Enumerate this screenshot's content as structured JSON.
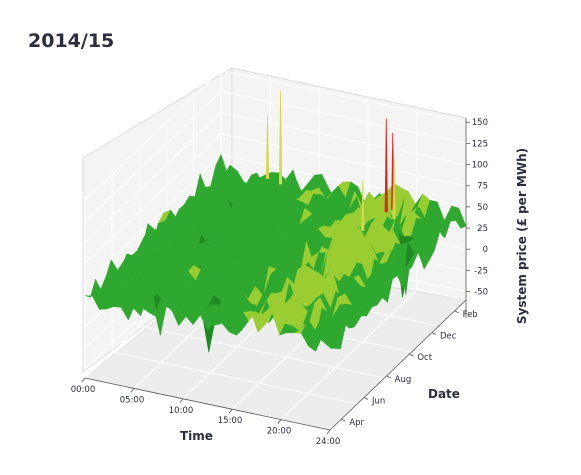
{
  "chart_data": {
    "type": "surface3d",
    "title": "2014/15",
    "xlabel": "Time",
    "ylabel": "Date",
    "zlabel": "System price (£ per MWh)",
    "x_ticks": [
      "00:00",
      "05:00",
      "10:00",
      "15:00",
      "20:00",
      "24:00"
    ],
    "y_ticks": [
      "Apr",
      "Jun",
      "Aug",
      "Oct",
      "Dec",
      "Feb"
    ],
    "z_ticks": [
      150,
      125,
      100,
      75,
      50,
      25,
      0,
      -25,
      -50
    ],
    "xlim": [
      0,
      24
    ],
    "ylim": [
      0,
      12
    ],
    "zlim": [
      -60,
      155
    ],
    "colormap": [
      "#0a1a4a",
      "#1f8a1f",
      "#2ea82e",
      "#9acd32",
      "#d4d94a",
      "#e8a020",
      "#e8201a"
    ],
    "typical_range": [
      10,
      60
    ],
    "spikes": [
      {
        "time": 17.3,
        "month": 11.0,
        "value": 150
      },
      {
        "time": 17.6,
        "month": 11.3,
        "value": 130
      },
      {
        "time": 18.5,
        "month": 10.6,
        "value": 110
      },
      {
        "time": 17.0,
        "month": 9.2,
        "value": 100
      },
      {
        "time": 6.5,
        "month": 11.4,
        "value": 150
      },
      {
        "time": 5.0,
        "month": 11.6,
        "value": 115
      }
    ]
  }
}
